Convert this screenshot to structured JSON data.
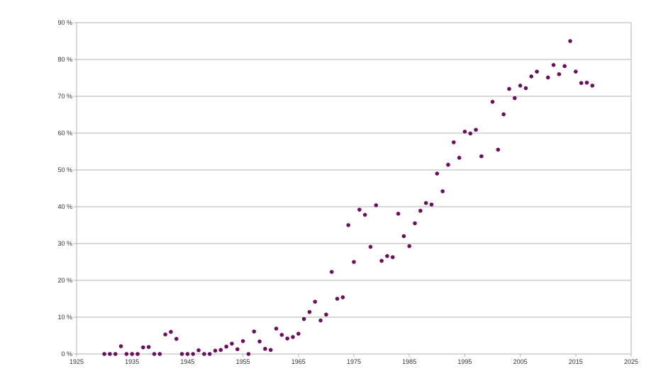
{
  "chart_data": {
    "type": "scatter",
    "title": "",
    "xlabel": "",
    "ylabel": "",
    "xlim": [
      1925,
      2025
    ],
    "ylim": [
      0,
      90
    ],
    "x_ticks": [
      1925,
      1935,
      1945,
      1955,
      1965,
      1975,
      1985,
      1995,
      2005,
      2015,
      2025
    ],
    "y_ticks": [
      0,
      10,
      20,
      30,
      40,
      50,
      60,
      70,
      80,
      90
    ],
    "y_tick_format": "{v} %",
    "grid": "horizontal",
    "legend": "none",
    "colors": {
      "marker": "#6b0f5f",
      "grid": "#b3b3b3",
      "axis": "#b3b3b3",
      "text": "#333333"
    },
    "series": [
      {
        "x": [
          1930,
          1931,
          1932,
          1933,
          1934,
          1935,
          1936,
          1937,
          1938,
          1939,
          1940,
          1941,
          1942,
          1943,
          1944,
          1945,
          1946,
          1947,
          1948,
          1949,
          1950,
          1951,
          1952,
          1953,
          1954,
          1955,
          1956,
          1957,
          1958,
          1959,
          1960,
          1961,
          1962,
          1963,
          1964,
          1965,
          1966,
          1967,
          1968,
          1969,
          1970,
          1971,
          1972,
          1973,
          1974,
          1975,
          1976,
          1977,
          1978,
          1979,
          1980,
          1981,
          1982,
          1983,
          1984,
          1985,
          1986,
          1987,
          1988,
          1989,
          1990,
          1991,
          1992,
          1993,
          1994,
          1995,
          1996,
          1997,
          1998,
          2000,
          2001,
          2002,
          2003,
          2004,
          2005,
          2006,
          2007,
          2008,
          2010,
          2011,
          2012,
          2013,
          2014,
          2015,
          2016,
          2017,
          2018
        ],
        "y": [
          0,
          0,
          0,
          2.1,
          0,
          0,
          0,
          1.8,
          1.9,
          0,
          0,
          5.3,
          6.0,
          4.1,
          0,
          0,
          0,
          1.0,
          0,
          0,
          0.9,
          1.1,
          2.0,
          2.8,
          1.3,
          3.5,
          0,
          6.1,
          3.4,
          1.4,
          1.1,
          6.9,
          5.2,
          4.2,
          4.6,
          5.5,
          9.5,
          11.4,
          14.2,
          9.1,
          10.7,
          22.3,
          15.0,
          15.4,
          35.0,
          25.0,
          39.2,
          37.8,
          29.1,
          40.4,
          25.3,
          26.6,
          26.3,
          38.1,
          32.0,
          29.3,
          35.5,
          38.9,
          41.0,
          40.6,
          49.0,
          44.2,
          51.4,
          57.5,
          53.3,
          60.4,
          59.9,
          60.9,
          53.7,
          68.5,
          55.5,
          65.1,
          72.0,
          69.5,
          72.9,
          72.2,
          75.4,
          76.7,
          75.1,
          78.5,
          76.0,
          78.2,
          85.0,
          76.7,
          73.6,
          73.7,
          72.9
        ]
      }
    ]
  }
}
